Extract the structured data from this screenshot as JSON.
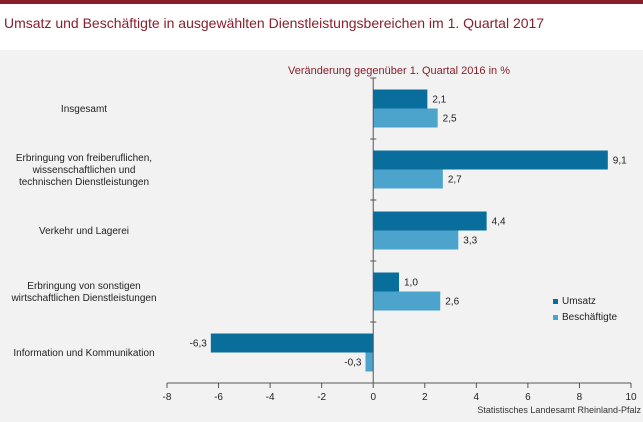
{
  "title": "Umsatz und Beschäftigte in ausgewählten Dienstleistungsbereichen im 1. Quartal 2017",
  "source": "Statistisches Landesamt Rheinland-Pfalz",
  "colors": {
    "accent": "#8a1e2b",
    "umsatz": "#0a6e9c",
    "beschaeftigte": "#4ca3cc"
  },
  "chart_data": {
    "type": "bar",
    "orientation": "horizontal",
    "subtitle": "Veränderung gegenüber 1. Quartal 2016 in %",
    "categories": [
      [
        "Insgesamt"
      ],
      [
        "Erbringung von freiberuflichen,",
        "wissenschaftlichen und",
        "technischen Dienstleistungen"
      ],
      [
        "Verkehr und Lagerei"
      ],
      [
        "Erbringung von sonstigen",
        "wirtschaftlichen Dienstleistungen"
      ],
      [
        "Information und Kommunikation"
      ]
    ],
    "series": [
      {
        "name": "Umsatz",
        "values": [
          2.1,
          9.1,
          4.4,
          1.0,
          -6.3
        ],
        "labels": [
          "2,1",
          "9,1",
          "4,4",
          "1,0",
          "-6,3"
        ]
      },
      {
        "name": "Beschäftigte",
        "values": [
          2.5,
          2.7,
          3.3,
          2.6,
          -0.3
        ],
        "labels": [
          "2,5",
          "2,7",
          "3,3",
          "2,6",
          "-0,3"
        ]
      }
    ],
    "xlim": [
      -8,
      10
    ],
    "xticks": [
      -8,
      -6,
      -4,
      -2,
      0,
      2,
      4,
      6,
      8,
      10
    ],
    "xtick_labels": [
      "-8",
      "-6",
      "-4",
      "-2",
      "0",
      "2",
      "4",
      "6",
      "8",
      "10"
    ],
    "grid": false,
    "legend_position": "right"
  }
}
